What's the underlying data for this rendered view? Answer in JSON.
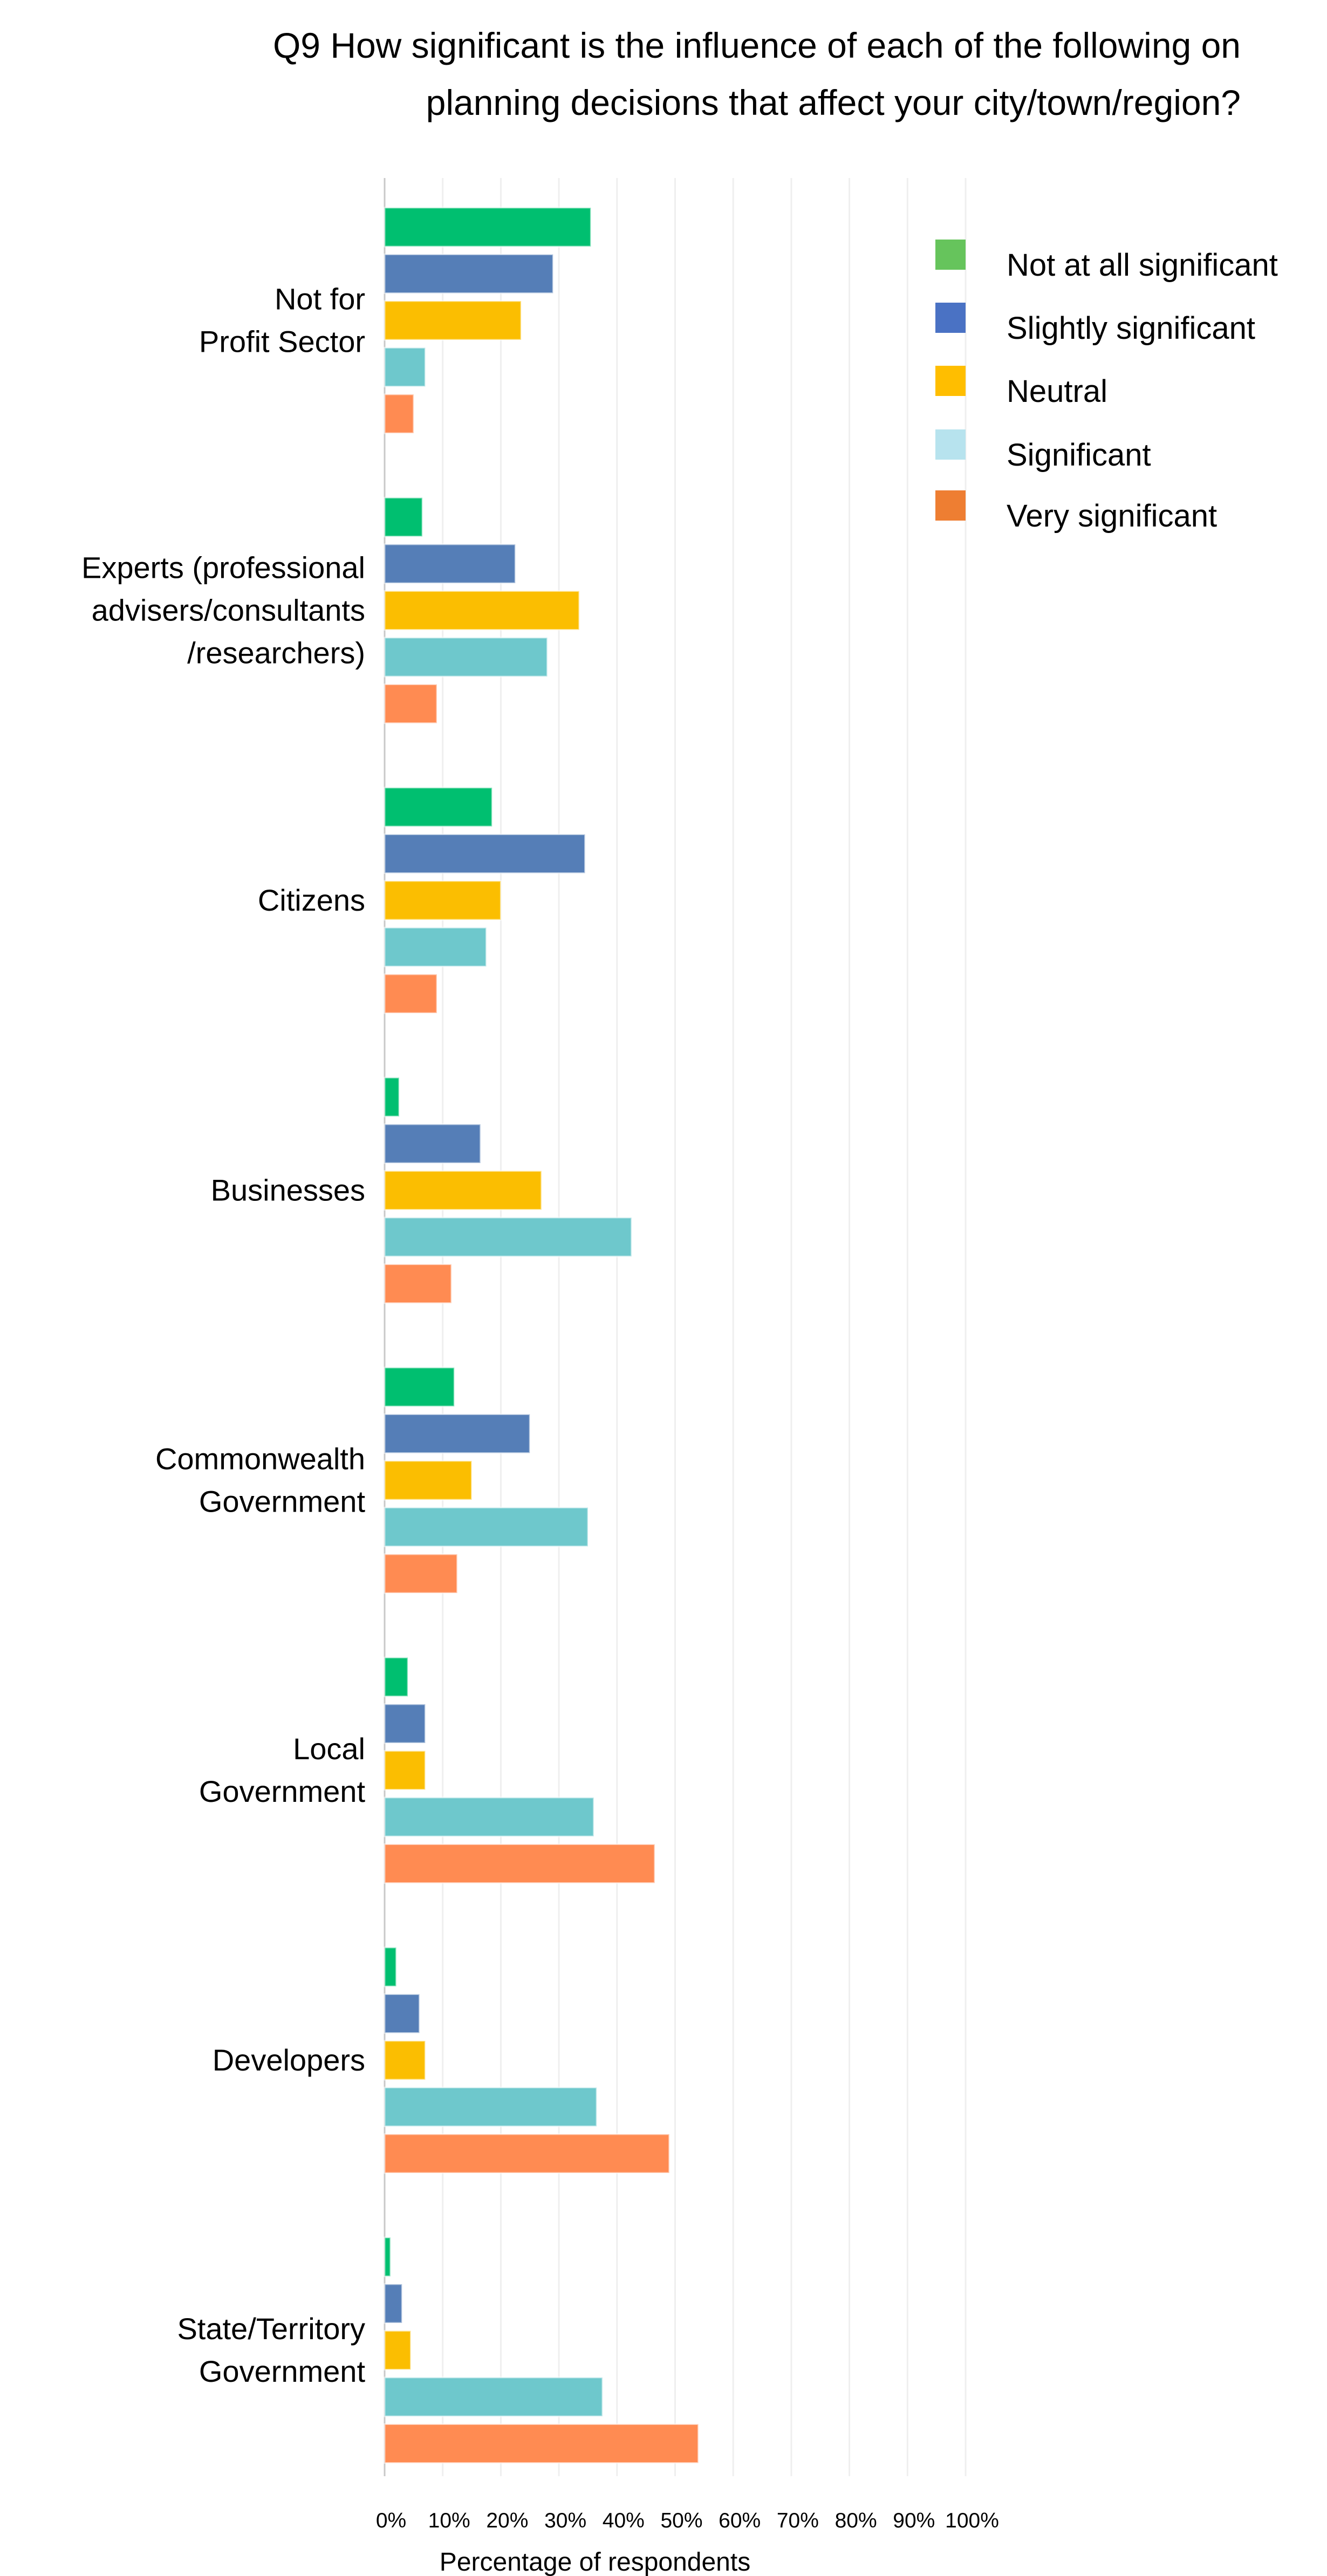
{
  "chart_data": {
    "type": "bar",
    "orientation": "horizontal",
    "title_lines": [
      "Q9 How significant is the influence of each of the following on",
      "planning decisions that affect your city/town/region?"
    ],
    "xlabel": "Percentage of respondents",
    "xlim": [
      0,
      100
    ],
    "x_ticks": [
      "0%",
      "10%",
      "20%",
      "30%",
      "40%",
      "50%",
      "60%",
      "70%",
      "80%",
      "90%",
      "100%"
    ],
    "grid": true,
    "legend_position": "top-right",
    "categories": [
      {
        "label_lines": [
          "Not for",
          "Profit Sector"
        ]
      },
      {
        "label_lines": [
          "Experts (professional",
          "advisers/consultants",
          "/researchers)"
        ]
      },
      {
        "label_lines": [
          "Citizens"
        ]
      },
      {
        "label_lines": [
          "Businesses"
        ]
      },
      {
        "label_lines": [
          "Commonwealth",
          "Government"
        ]
      },
      {
        "label_lines": [
          "Local",
          "Government"
        ]
      },
      {
        "label_lines": [
          "Developers"
        ]
      },
      {
        "label_lines": [
          "State/Territory",
          "Government"
        ]
      }
    ],
    "series": [
      {
        "name": "Not at all significant",
        "color": "#00BF70",
        "legend_color": "#66C45C",
        "values": [
          35.5,
          6.5,
          18.5,
          2.5,
          12,
          4,
          2,
          1
        ]
      },
      {
        "name": "Slightly significant",
        "color": "#557EB7",
        "legend_color": "#4A72C4",
        "values": [
          29,
          22.5,
          34.5,
          16.5,
          25,
          7,
          6,
          3
        ]
      },
      {
        "name": "Neutral",
        "color": "#FBBE01",
        "legend_color": "#FFBE00",
        "values": [
          23.5,
          33.5,
          20,
          27,
          15,
          7,
          7,
          4.5
        ]
      },
      {
        "name": "Significant",
        "color": "#6EC8CC",
        "legend_color": "#B7E3EE",
        "values": [
          7,
          28,
          17.5,
          42.5,
          35,
          36,
          36.5,
          37.5
        ]
      },
      {
        "name": "Very significant",
        "color": "#FF8B52",
        "legend_color": "#EE7E32",
        "values": [
          5,
          9,
          9,
          11.5,
          12.5,
          46.5,
          49,
          54
        ]
      }
    ]
  }
}
